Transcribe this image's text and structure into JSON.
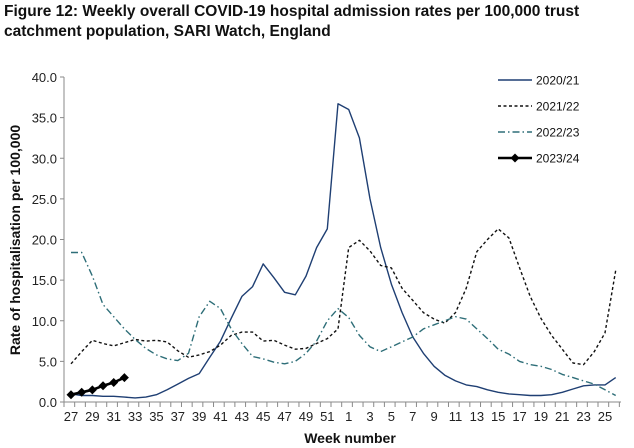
{
  "chart_data": {
    "type": "line",
    "title": "Figure 12: Weekly overall COVID-19 hospital admission rates per 100,000 trust catchment population, SARI Watch, England",
    "xlabel": "Week number",
    "ylabel": "Rate of hospitalisation per 100,000",
    "ylim": [
      0,
      40
    ],
    "yticks": [
      "0.0",
      "5.0",
      "10.0",
      "15.0",
      "20.0",
      "25.0",
      "30.0",
      "35.0",
      "40.0"
    ],
    "yticks_values": [
      0,
      5,
      10,
      15,
      20,
      25,
      30,
      35,
      40
    ],
    "x": [
      27,
      28,
      29,
      30,
      31,
      32,
      33,
      34,
      35,
      36,
      37,
      38,
      39,
      40,
      41,
      42,
      43,
      44,
      45,
      46,
      47,
      48,
      49,
      50,
      51,
      52,
      1,
      2,
      3,
      4,
      5,
      6,
      7,
      8,
      9,
      10,
      11,
      12,
      13,
      14,
      15,
      16,
      17,
      18,
      19,
      20,
      21,
      22,
      23,
      24,
      25,
      26
    ],
    "xtick_labels": [
      "27",
      "29",
      "31",
      "33",
      "35",
      "37",
      "39",
      "41",
      "43",
      "45",
      "47",
      "49",
      "51",
      "1",
      "3",
      "5",
      "7",
      "9",
      "11",
      "13",
      "15",
      "17",
      "19",
      "21",
      "23",
      "25"
    ],
    "grid": false,
    "legend_position": "top-right",
    "series": [
      {
        "name": "2020/21",
        "style": "solid",
        "color": "#1f3f73",
        "values": [
          1.0,
          0.8,
          0.8,
          0.7,
          0.7,
          0.6,
          0.5,
          0.6,
          0.9,
          1.5,
          2.2,
          2.9,
          3.5,
          5.5,
          7.5,
          10.3,
          13.0,
          14.2,
          17.0,
          15.3,
          13.5,
          13.2,
          15.5,
          19.0,
          21.3,
          36.7,
          36.0,
          32.5,
          25.0,
          19.0,
          14.5,
          11.0,
          8.0,
          6.0,
          4.4,
          3.3,
          2.6,
          2.1,
          1.9,
          1.5,
          1.2,
          1.0,
          0.9,
          0.8,
          0.8,
          0.9,
          1.2,
          1.6,
          2.0,
          2.1,
          2.1,
          3.0
        ]
      },
      {
        "name": "2021/22",
        "style": "dashed",
        "color": "#111111",
        "values": [
          4.7,
          6.2,
          7.6,
          7.2,
          6.9,
          7.3,
          7.7,
          7.5,
          7.6,
          7.4,
          6.3,
          5.5,
          5.8,
          6.2,
          7.0,
          8.2,
          8.6,
          8.6,
          7.5,
          7.6,
          7.0,
          6.5,
          6.6,
          7.2,
          7.8,
          9.0,
          19.0,
          19.9,
          18.6,
          16.8,
          16.5,
          14.0,
          12.5,
          11.0,
          10.2,
          9.7,
          11.0,
          14.0,
          18.5,
          20.0,
          21.3,
          20.2,
          16.5,
          13.0,
          10.3,
          8.2,
          6.5,
          4.8,
          4.6,
          6.2,
          8.5,
          16.2
        ]
      },
      {
        "name": "2022/23",
        "style": "dashdot",
        "color": "#2e6e78",
        "values": [
          18.4,
          18.4,
          15.5,
          12.0,
          10.5,
          9.0,
          7.7,
          6.6,
          5.8,
          5.3,
          5.1,
          6.0,
          10.5,
          12.4,
          11.5,
          9.0,
          7.2,
          5.6,
          5.3,
          4.9,
          4.7,
          5.0,
          6.0,
          7.5,
          10.0,
          11.5,
          10.4,
          8.2,
          6.8,
          6.2,
          6.8,
          7.4,
          8.0,
          9.0,
          9.5,
          10.0,
          10.5,
          10.2,
          9.0,
          7.8,
          6.5,
          5.9,
          5.0,
          4.6,
          4.4,
          4.0,
          3.4,
          3.0,
          2.6,
          2.2,
          1.5,
          0.8
        ]
      },
      {
        "name": "2023/24",
        "style": "solid-markers",
        "color": "#000000",
        "values": [
          0.9,
          1.2,
          1.5,
          2.0,
          2.4,
          3.0
        ]
      }
    ]
  }
}
